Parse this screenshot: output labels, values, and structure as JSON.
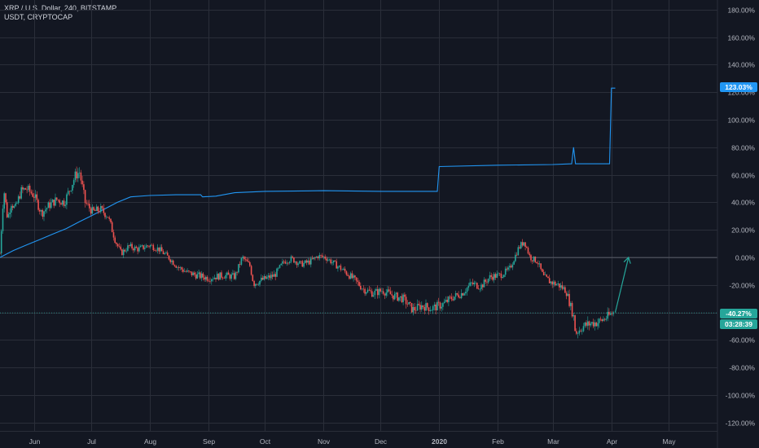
{
  "header": {
    "symbol_line": "XRP / U.S. Dollar, 240, BITSTAMP",
    "compare_line": "USDT, CRYPTOCAP"
  },
  "colors": {
    "background": "#131722",
    "grid": "#2a2e39",
    "up": "#26a69a",
    "down": "#ef5350",
    "compare": "#2196f3",
    "arrow": "#26a69a",
    "axis_text": "#b2b5be"
  },
  "badges": {
    "compare_value": "123.03%",
    "price_value": "-40.27%",
    "countdown": "03:28:39"
  },
  "chart_data": {
    "type": "line",
    "scale": "percent change",
    "y_ticks": [
      180,
      160,
      140,
      120,
      100,
      80,
      60,
      40,
      20,
      0,
      -20,
      -40,
      -60,
      -80,
      -100,
      -120
    ],
    "y_tick_labels": [
      "180.00%",
      "160.00%",
      "140.00%",
      "120.00%",
      "100.00%",
      "80.00%",
      "60.00%",
      "40.00%",
      "20.00%",
      "0.00%",
      "-20.00%",
      "-40.00%",
      "-60.00%",
      "-80.00%",
      "-100.00%",
      "-120.00%"
    ],
    "ylim": [
      -126,
      187
    ],
    "x_range": [
      "2019-05-14",
      "2020-05-27"
    ],
    "x_ticks": [
      {
        "date": "2019-06-01",
        "label": "Jun"
      },
      {
        "date": "2019-07-01",
        "label": "Jul"
      },
      {
        "date": "2019-08-01",
        "label": "Aug"
      },
      {
        "date": "2019-09-01",
        "label": "Sep"
      },
      {
        "date": "2019-10-01",
        "label": "Oct"
      },
      {
        "date": "2019-11-01",
        "label": "Nov"
      },
      {
        "date": "2019-12-01",
        "label": "Dec"
      },
      {
        "date": "2020-01-01",
        "label": "2020"
      },
      {
        "date": "2020-02-01",
        "label": "Feb"
      },
      {
        "date": "2020-03-01",
        "label": "Mar"
      },
      {
        "date": "2020-04-01",
        "label": "Apr"
      },
      {
        "date": "2020-05-01",
        "label": "May"
      }
    ],
    "series": [
      {
        "name": "USDT, CRYPTOCAP",
        "style": "line",
        "points": [
          [
            "2019-05-14",
            0
          ],
          [
            "2019-05-21",
            5
          ],
          [
            "2019-05-28",
            9
          ],
          [
            "2019-06-04",
            13
          ],
          [
            "2019-06-11",
            17
          ],
          [
            "2019-06-18",
            21
          ],
          [
            "2019-06-25",
            26
          ],
          [
            "2019-07-01",
            30
          ],
          [
            "2019-07-08",
            35
          ],
          [
            "2019-07-15",
            40
          ],
          [
            "2019-07-22",
            44
          ],
          [
            "2019-08-01",
            45
          ],
          [
            "2019-08-15",
            45.5
          ],
          [
            "2019-08-28",
            45.5
          ],
          [
            "2019-08-29",
            44
          ],
          [
            "2019-09-05",
            44.5
          ],
          [
            "2019-09-15",
            47
          ],
          [
            "2019-10-01",
            48
          ],
          [
            "2019-11-01",
            48.5
          ],
          [
            "2019-12-01",
            48
          ],
          [
            "2019-12-31",
            48
          ],
          [
            "2020-01-01",
            66
          ],
          [
            "2020-02-01",
            67
          ],
          [
            "2020-03-01",
            67.5
          ],
          [
            "2020-03-11",
            68
          ],
          [
            "2020-03-12",
            80
          ],
          [
            "2020-03-13",
            68
          ],
          [
            "2020-03-31",
            68
          ],
          [
            "2020-04-01",
            123
          ],
          [
            "2020-04-03",
            123
          ]
        ]
      },
      {
        "name": "XRP / U.S. Dollar",
        "style": "candles",
        "points": [
          [
            "2019-05-14",
            3
          ],
          [
            "2019-05-16",
            50
          ],
          [
            "2019-05-18",
            28
          ],
          [
            "2019-05-20",
            40
          ],
          [
            "2019-05-22",
            35
          ],
          [
            "2019-05-25",
            48
          ],
          [
            "2019-05-28",
            50
          ],
          [
            "2019-06-01",
            45
          ],
          [
            "2019-06-05",
            32
          ],
          [
            "2019-06-09",
            38
          ],
          [
            "2019-06-13",
            42
          ],
          [
            "2019-06-17",
            40
          ],
          [
            "2019-06-20",
            50
          ],
          [
            "2019-06-23",
            60
          ],
          [
            "2019-06-25",
            62
          ],
          [
            "2019-06-28",
            40
          ],
          [
            "2019-07-02",
            33
          ],
          [
            "2019-07-06",
            35
          ],
          [
            "2019-07-10",
            30
          ],
          [
            "2019-07-14",
            12
          ],
          [
            "2019-07-17",
            3
          ],
          [
            "2019-07-21",
            8
          ],
          [
            "2019-07-26",
            6
          ],
          [
            "2019-08-01",
            9
          ],
          [
            "2019-08-06",
            6
          ],
          [
            "2019-08-11",
            0
          ],
          [
            "2019-08-16",
            -7
          ],
          [
            "2019-08-21",
            -11
          ],
          [
            "2019-08-26",
            -13
          ],
          [
            "2019-09-01",
            -15
          ],
          [
            "2019-09-09",
            -13
          ],
          [
            "2019-09-15",
            -14
          ],
          [
            "2019-09-19",
            0
          ],
          [
            "2019-09-23",
            -6
          ],
          [
            "2019-09-25",
            -19
          ],
          [
            "2019-09-30",
            -16
          ],
          [
            "2019-10-06",
            -13
          ],
          [
            "2019-10-11",
            -3
          ],
          [
            "2019-10-15",
            -1
          ],
          [
            "2019-10-20",
            -5
          ],
          [
            "2019-10-25",
            -3
          ],
          [
            "2019-10-29",
            1
          ],
          [
            "2019-11-02",
            0
          ],
          [
            "2019-11-07",
            -5
          ],
          [
            "2019-11-12",
            -10
          ],
          [
            "2019-11-17",
            -16
          ],
          [
            "2019-11-22",
            -23
          ],
          [
            "2019-11-27",
            -26
          ],
          [
            "2019-12-02",
            -24
          ],
          [
            "2019-12-08",
            -28
          ],
          [
            "2019-12-13",
            -30
          ],
          [
            "2019-12-18",
            -38
          ],
          [
            "2019-12-23",
            -35
          ],
          [
            "2019-12-28",
            -37
          ],
          [
            "2020-01-03",
            -34
          ],
          [
            "2020-01-08",
            -29
          ],
          [
            "2020-01-13",
            -26
          ],
          [
            "2020-01-18",
            -19
          ],
          [
            "2020-01-23",
            -21
          ],
          [
            "2020-01-28",
            -14
          ],
          [
            "2020-02-02",
            -13
          ],
          [
            "2020-02-07",
            -9
          ],
          [
            "2020-02-12",
            7
          ],
          [
            "2020-02-15",
            12
          ],
          [
            "2020-02-18",
            0
          ],
          [
            "2020-02-22",
            -3
          ],
          [
            "2020-02-25",
            -14
          ],
          [
            "2020-02-29",
            -18
          ],
          [
            "2020-03-04",
            -20
          ],
          [
            "2020-03-08",
            -24
          ],
          [
            "2020-03-12",
            -43
          ],
          [
            "2020-03-13",
            -55
          ],
          [
            "2020-03-17",
            -50
          ],
          [
            "2020-03-21",
            -48
          ],
          [
            "2020-03-25",
            -47
          ],
          [
            "2020-03-29",
            -44
          ],
          [
            "2020-04-02",
            -40
          ]
        ]
      }
    ],
    "annotations": [
      {
        "type": "arrow",
        "from": [
          "2020-04-03",
          -40
        ],
        "to": [
          "2020-04-10",
          0
        ]
      }
    ],
    "reference_lines": [
      0,
      -40.27
    ],
    "grid": true
  }
}
